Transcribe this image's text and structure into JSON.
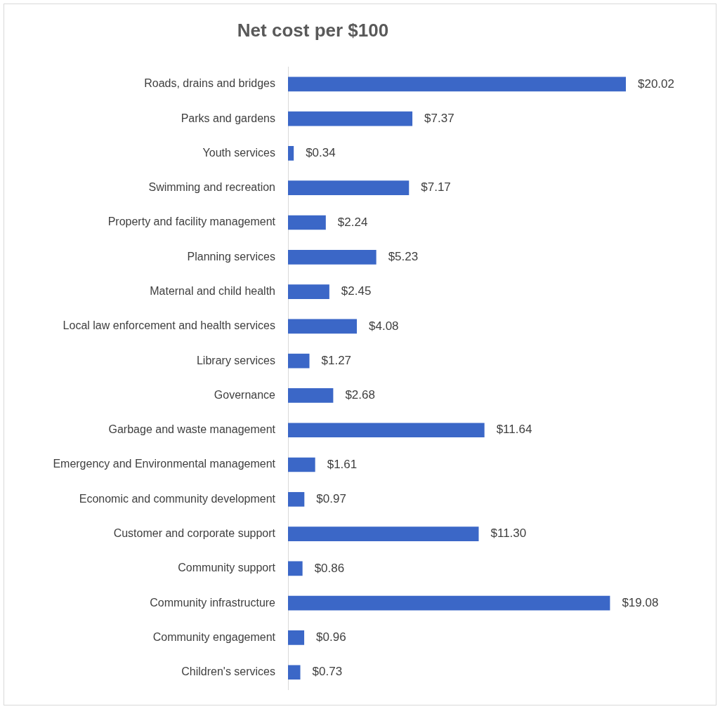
{
  "chart_data": {
    "type": "bar",
    "orientation": "horizontal",
    "title": "Net cost per $100",
    "categories": [
      "Roads, drains and bridges",
      "Parks and gardens",
      "Youth services",
      "Swimming and recreation",
      "Property and facility management",
      "Planning services",
      "Maternal and child health",
      "Local law enforcement and health services",
      "Library services",
      "Governance",
      "Garbage and waste management",
      "Emergency and Environmental management",
      "Economic and community development",
      "Customer and corporate support",
      "Community support",
      "Community infrastructure",
      "Community engagement",
      "Children's services"
    ],
    "values": [
      20.02,
      7.37,
      0.34,
      7.17,
      2.24,
      5.23,
      2.45,
      4.08,
      1.27,
      2.68,
      11.64,
      1.61,
      0.97,
      11.3,
      0.86,
      19.08,
      0.96,
      0.73
    ],
    "color": "#3b67c7",
    "value_labels": [
      "$20.02",
      "$7.37",
      "$0.34",
      "$7.17",
      "$2.24",
      "$5.23",
      "$2.45",
      "$4.08",
      "$1.27",
      "$2.68",
      "$11.64",
      "$1.61",
      "$0.97",
      "$11.30",
      "$0.86",
      "$19.08",
      "$0.96",
      "$0.73"
    ],
    "tick_labels": "y"
  }
}
